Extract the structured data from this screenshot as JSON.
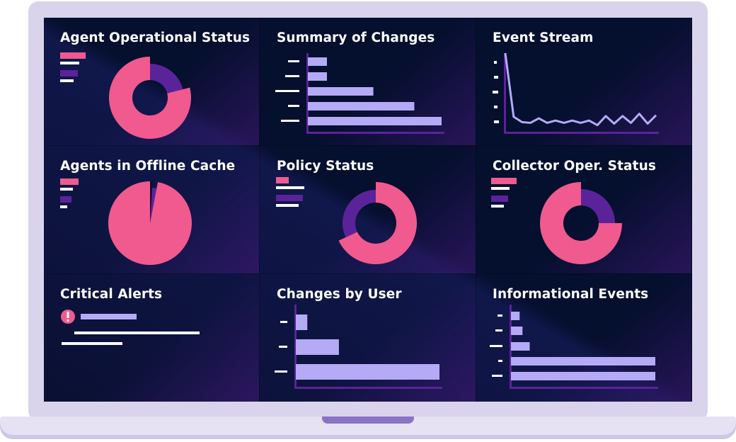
{
  "colors": {
    "pink": "#f05a8e",
    "purple": "#5b239a",
    "lavender": "#b5aaf6",
    "axis": "#5b239a",
    "screen": "#050f2e",
    "frame": "#d9d3ec"
  },
  "panels": [
    {
      "title": "Agent Operational Status",
      "chart_type": "donut"
    },
    {
      "title": "Summary of Changes",
      "chart_type": "bar"
    },
    {
      "title": "Event Stream",
      "chart_type": "line"
    },
    {
      "title": "Agents in Offline Cache",
      "chart_type": "pie"
    },
    {
      "title": "Policy Status",
      "chart_type": "donut"
    },
    {
      "title": "Collector Oper. Status",
      "chart_type": "donut"
    },
    {
      "title": "Critical Alerts",
      "chart_type": "alerts",
      "alert_icon": "exclamation-icon"
    },
    {
      "title": "Changes by User",
      "chart_type": "bar"
    },
    {
      "title": "Informational Events",
      "chart_type": "bar"
    }
  ],
  "chart_data": [
    {
      "type": "pie",
      "title": "Agent Operational Status",
      "donut": true,
      "values": [
        21,
        79
      ],
      "colors": [
        "#5b239a",
        "#f05a8e"
      ]
    },
    {
      "type": "bar",
      "title": "Summary of Changes",
      "orientation": "horizontal",
      "values": [
        14,
        14,
        48,
        78,
        98
      ]
    },
    {
      "type": "line",
      "title": "Event Stream",
      "values": [
        100,
        16,
        9,
        8,
        14,
        8,
        11,
        8,
        11,
        8,
        11,
        5,
        17,
        7,
        17,
        8,
        20,
        7,
        18
      ]
    },
    {
      "type": "pie",
      "title": "Agents in Offline Cache",
      "donut": false,
      "values": [
        1,
        2,
        97
      ],
      "colors": [
        "#050f2e",
        "#5b239a",
        "#f05a8e"
      ]
    },
    {
      "type": "pie",
      "title": "Policy Status",
      "donut": true,
      "values": [
        68,
        32
      ],
      "colors": [
        "#f05a8e",
        "#5b239a"
      ]
    },
    {
      "type": "pie",
      "title": "Collector Oper. Status",
      "donut": true,
      "values": [
        25,
        75
      ],
      "colors": [
        "#5b239a",
        "#f05a8e"
      ]
    },
    {
      "type": "bar",
      "title": "Changes by User",
      "orientation": "horizontal",
      "values": [
        8,
        30,
        100
      ]
    },
    {
      "type": "bar",
      "title": "Informational Events",
      "orientation": "horizontal",
      "values": [
        6,
        8,
        13,
        100,
        100
      ]
    }
  ]
}
